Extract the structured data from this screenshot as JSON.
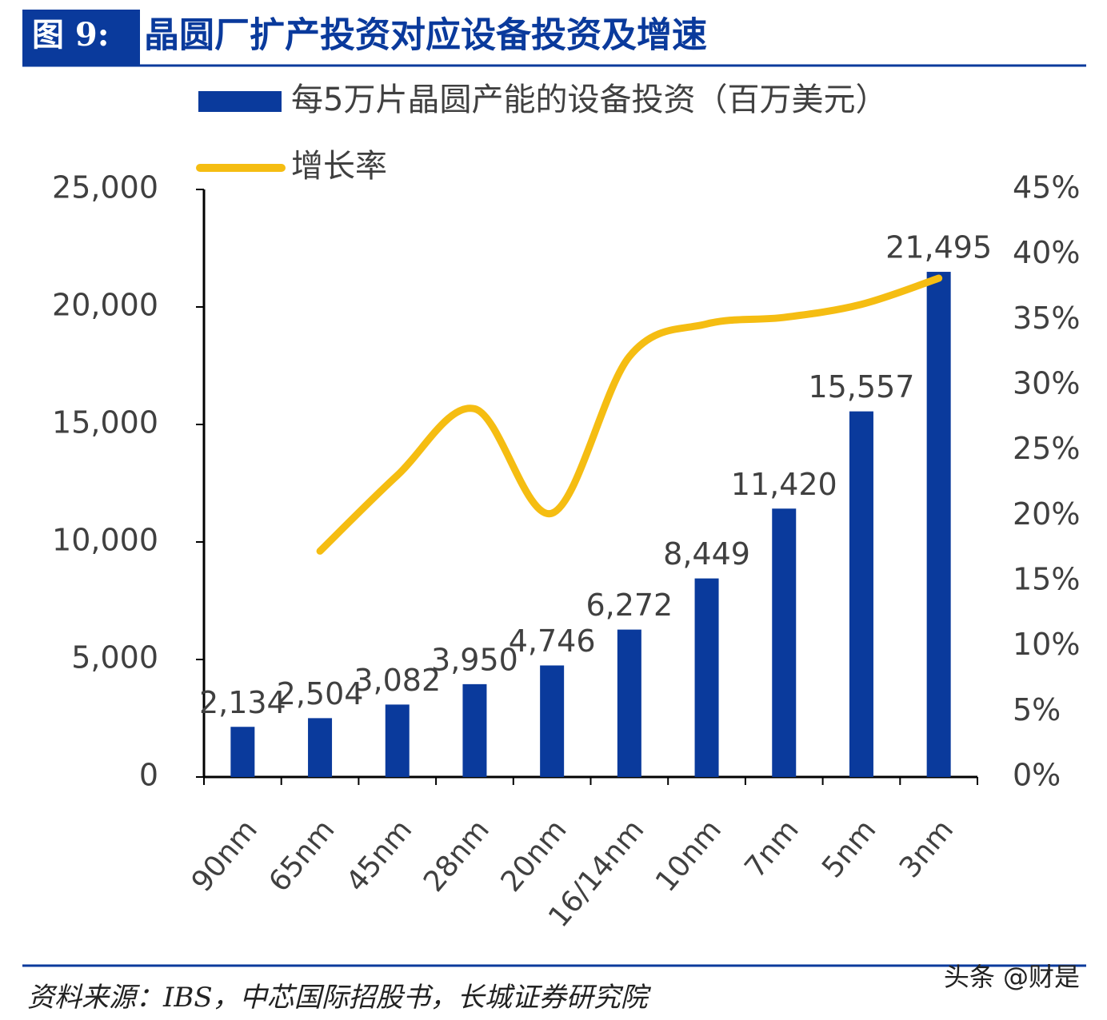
{
  "chart_data": {
    "type": "bar_line",
    "figure_label": "图 9:",
    "title": "晶圆厂扩产投资对应设备投资及增速",
    "categories": [
      "90nm",
      "65nm",
      "45nm",
      "28nm",
      "20nm",
      "16/14nm",
      "10nm",
      "7nm",
      "5nm",
      "3nm"
    ],
    "series": [
      {
        "name": "每5万片晶圆产能的设备投资（百万美元）",
        "type": "bar",
        "color": "#0a3a9c",
        "values": [
          2134,
          2504,
          3082,
          3950,
          4746,
          6272,
          8449,
          11420,
          15557,
          21495
        ],
        "value_labels": [
          "2,134",
          "2,504",
          "3,082",
          "3,950",
          "4,746",
          "6,272",
          "8,449",
          "11,420",
          "15,557",
          "21,495"
        ]
      },
      {
        "name": "增长率",
        "type": "line",
        "axis": "y2",
        "color": "#f5bd12",
        "values": [
          null,
          17.3,
          23.1,
          28.2,
          20.2,
          32.2,
          34.7,
          35.2,
          36.2,
          38.2
        ]
      }
    ],
    "ylim": [
      0,
      25000
    ],
    "yticks": [
      0,
      {
        "value": 5000,
        "label": "5,000"
      },
      {
        "value": 10000,
        "label": "10,000"
      },
      {
        "value": 15000,
        "label": "15,000"
      },
      {
        "value": 20000,
        "label": "20,000"
      },
      {
        "value": 25000,
        "label": "25,000"
      }
    ],
    "y2lim": [
      0,
      45
    ],
    "y2ticks": [
      {
        "value": 0,
        "label": "0%"
      },
      {
        "value": 5,
        "label": "5%"
      },
      {
        "value": 10,
        "label": "10%"
      },
      {
        "value": 15,
        "label": "15%"
      },
      {
        "value": 20,
        "label": "20%"
      },
      {
        "value": 25,
        "label": "25%"
      },
      {
        "value": 30,
        "label": "30%"
      },
      {
        "value": 35,
        "label": "35%"
      },
      {
        "value": 40,
        "label": "40%"
      },
      {
        "value": 45,
        "label": "45%"
      }
    ],
    "source": "资料来源：IBS，中芯国际招股书，长城证券研究院",
    "watermark": "头条 @财是"
  }
}
